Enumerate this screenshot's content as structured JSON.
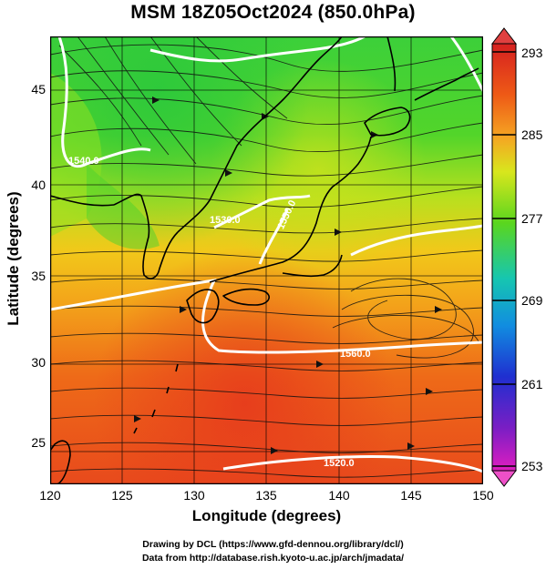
{
  "title": "MSM 18Z05Oct2024 (850.0hPa)",
  "x_axis": {
    "label": "Longitude (degrees)",
    "ticks": [
      "120",
      "125",
      "130",
      "135",
      "140",
      "145",
      "150"
    ]
  },
  "y_axis": {
    "label": "Latitude  (degrees)",
    "ticks": [
      "25",
      "30",
      "35",
      "40",
      "45"
    ]
  },
  "colorbar": {
    "labels": [
      "293",
      "285",
      "277",
      "269",
      "261",
      "253"
    ],
    "colors_top_to_bottom": [
      "#d62020",
      "#ee5a16",
      "#f5a623",
      "#d8e61d",
      "#5ad61e",
      "#16c6b0",
      "#118de0",
      "#1f2fd0",
      "#7a1ec4",
      "#e01ec0"
    ]
  },
  "contour_labels": [
    "1560.0",
    "1550.0",
    "1540.0",
    "1530.0",
    "1520.0"
  ],
  "credits": {
    "line1": "Drawing by DCL (https://www.gfd-dennou.org/library/dcl/)",
    "line2": "Data from http://database.rish.kyoto-u.ac.jp/arch/jmadata/"
  }
}
